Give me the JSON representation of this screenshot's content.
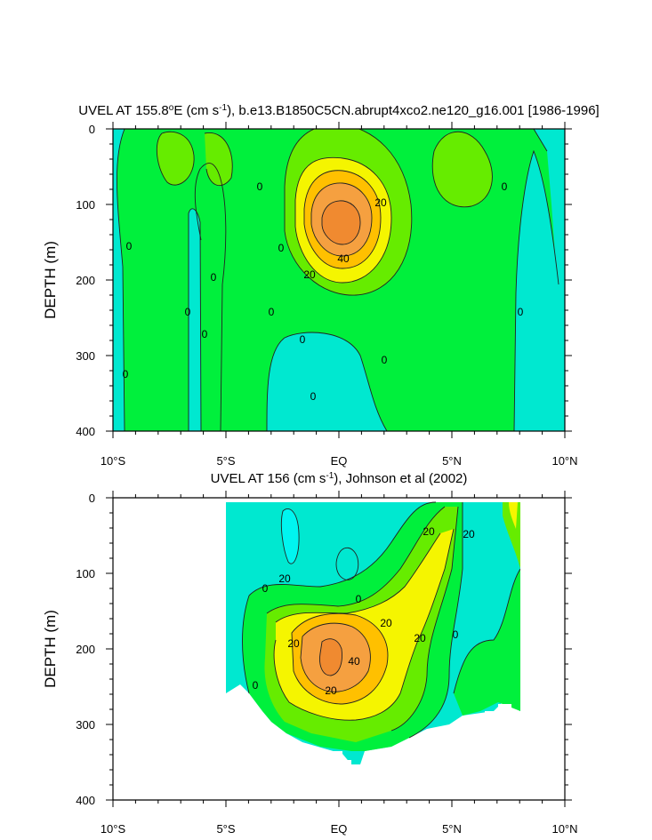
{
  "colors": {
    "neg": "#00e8d0",
    "negDeep": "#00f5f0",
    "pos0": "#00f03c",
    "pos10": "#66ec00",
    "pos20": "#f5f500",
    "pos30": "#ffc000",
    "pos40": "#f5a040",
    "pos50": "#f08a30",
    "line": "#222222"
  },
  "chart_data": [
    {
      "type": "heatmap",
      "title_pre": "UVEL AT 155.8",
      "title_sup1": "o",
      "title_mid": "E (cm s",
      "title_sup2": "-1",
      "title_post": "), b.e13.B1850C5CN.abrupt4xco2.ne120_g16.001 [1986-1996]",
      "ylabel": "DEPTH (m)",
      "x_ticks": [
        "10°S",
        "5°S",
        "EQ",
        "5°N",
        "10°N"
      ],
      "y_ticks": [
        "0",
        "100",
        "200",
        "300",
        "400"
      ],
      "xlim": [
        -10,
        10
      ],
      "ylim": [
        0,
        400
      ],
      "contour_interval": 10,
      "core": {
        "lat": -0.2,
        "depth": 120,
        "max_speed": 55
      },
      "contour_labels": [
        "20",
        "40",
        "20",
        "0",
        "0",
        "0",
        "0",
        "0",
        "0",
        "0",
        "0",
        "0",
        "0",
        "0",
        "0",
        "0"
      ]
    },
    {
      "type": "heatmap",
      "title_pre": "UVEL AT 156 (cm s",
      "title_sup": "-1",
      "title_post": "), Johnson et al (2002)",
      "ylabel": "DEPTH (m)",
      "x_ticks": [
        "10°S",
        "5°S",
        "EQ",
        "5°N",
        "10°N"
      ],
      "y_ticks": [
        "0",
        "100",
        "200",
        "300",
        "400"
      ],
      "xlim": [
        -10,
        10
      ],
      "ylim": [
        0,
        400
      ],
      "contour_interval": 10,
      "core": {
        "lat": -0.3,
        "depth": 200,
        "max_speed": 55
      },
      "contour_labels": [
        "20",
        "20",
        "20",
        "0",
        "20",
        "20",
        "20",
        "40",
        "20",
        "0",
        "0",
        "0"
      ]
    }
  ]
}
